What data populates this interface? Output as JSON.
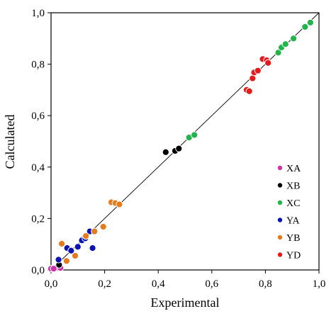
{
  "chart_data": {
    "type": "scatter",
    "xlabel": "Experimental",
    "ylabel": "Calculated",
    "xlim": [
      0,
      1
    ],
    "ylim": [
      0,
      1
    ],
    "xticks": [
      0,
      0.2,
      0.4,
      0.6,
      0.8,
      1
    ],
    "yticks": [
      0,
      0.2,
      0.4,
      0.6,
      0.8,
      1
    ],
    "xtick_labels": [
      "0,0",
      "0,2",
      "0,4",
      "0,6",
      "0,8",
      "1,0"
    ],
    "ytick_labels": [
      "0,0",
      "0,2",
      "0,4",
      "0,6",
      "0,8",
      "1,0"
    ],
    "grid": false,
    "legend_position": "lower-right",
    "reference_line": {
      "from": [
        0,
        0
      ],
      "to": [
        1,
        1
      ],
      "color": "#000000"
    },
    "series": [
      {
        "name": "XA",
        "color": "#cc33aa",
        "points": [
          [
            0.0,
            0.005
          ],
          [
            0.01,
            0.005
          ],
          [
            0.035,
            0.008
          ]
        ]
      },
      {
        "name": "XB",
        "color": "#000000",
        "points": [
          [
            0.428,
            0.458
          ],
          [
            0.463,
            0.463
          ],
          [
            0.477,
            0.472
          ],
          [
            0.03,
            0.02
          ],
          [
            0.12,
            0.12
          ]
        ]
      },
      {
        "name": "XC",
        "color": "#22b34a",
        "points": [
          [
            0.515,
            0.515
          ],
          [
            0.535,
            0.525
          ],
          [
            0.848,
            0.845
          ],
          [
            0.86,
            0.865
          ],
          [
            0.875,
            0.878
          ],
          [
            0.905,
            0.9
          ],
          [
            0.948,
            0.945
          ],
          [
            0.968,
            0.962
          ]
        ]
      },
      {
        "name": "YA",
        "color": "#0b13b3",
        "points": [
          [
            0.028,
            0.04
          ],
          [
            0.06,
            0.085
          ],
          [
            0.075,
            0.075
          ],
          [
            0.1,
            0.09
          ],
          [
            0.115,
            0.115
          ],
          [
            0.128,
            0.123
          ],
          [
            0.145,
            0.15
          ],
          [
            0.155,
            0.085
          ]
        ]
      },
      {
        "name": "YB",
        "color": "#e57b1e",
        "points": [
          [
            0.04,
            0.102
          ],
          [
            0.058,
            0.035
          ],
          [
            0.09,
            0.055
          ],
          [
            0.13,
            0.132
          ],
          [
            0.162,
            0.15
          ],
          [
            0.195,
            0.168
          ],
          [
            0.225,
            0.263
          ],
          [
            0.24,
            0.26
          ],
          [
            0.255,
            0.255
          ]
        ]
      },
      {
        "name": "YD",
        "color": "#e51b1b",
        "points": [
          [
            0.73,
            0.7
          ],
          [
            0.74,
            0.695
          ],
          [
            0.752,
            0.745
          ],
          [
            0.758,
            0.768
          ],
          [
            0.772,
            0.775
          ],
          [
            0.79,
            0.82
          ],
          [
            0.805,
            0.815
          ],
          [
            0.81,
            0.805
          ]
        ]
      }
    ]
  }
}
